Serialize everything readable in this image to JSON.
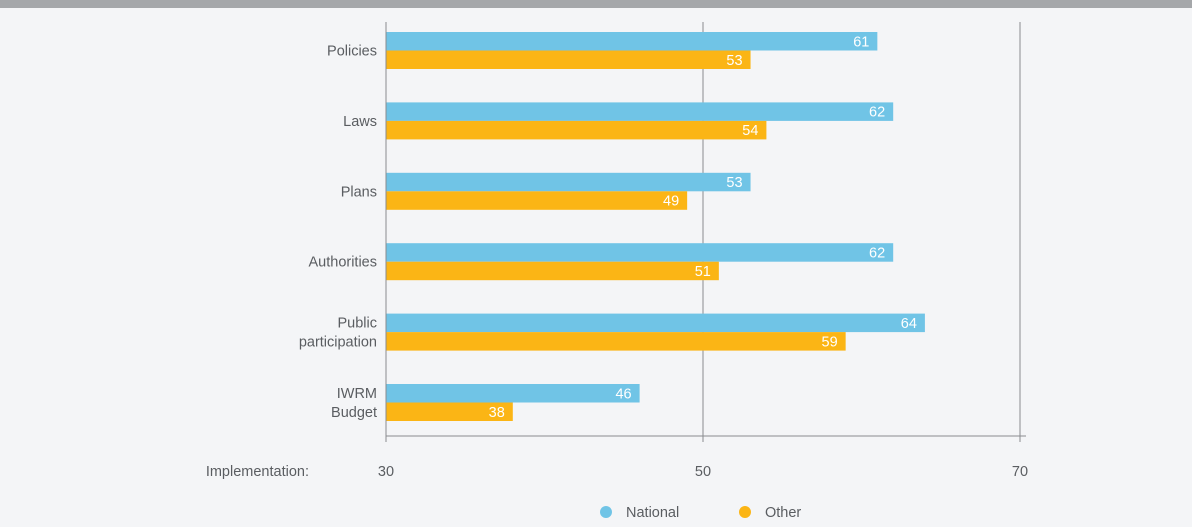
{
  "chart_data": {
    "type": "bar",
    "orientation": "horizontal",
    "categories": [
      "Policies",
      "Laws",
      "Plans",
      "Authorities",
      "Public participation",
      "IWRM Budget"
    ],
    "category_lines": [
      [
        "Policies"
      ],
      [
        "Laws"
      ],
      [
        "Plans"
      ],
      [
        "Authorities"
      ],
      [
        "Public",
        "participation"
      ],
      [
        "IWRM",
        "Budget"
      ]
    ],
    "series": [
      {
        "name": "National",
        "color": "#70c4e6",
        "values": [
          61,
          62,
          53,
          62,
          64,
          46
        ]
      },
      {
        "name": "Other",
        "color": "#fbb515",
        "values": [
          53,
          54,
          49,
          51,
          59,
          38
        ]
      }
    ],
    "xlabel": "Implementation:",
    "xlim": [
      30,
      70
    ],
    "xticks": [
      30,
      50,
      70
    ],
    "grid_lines_at": [
      50,
      70
    ],
    "legend_position": "bottom-center"
  }
}
